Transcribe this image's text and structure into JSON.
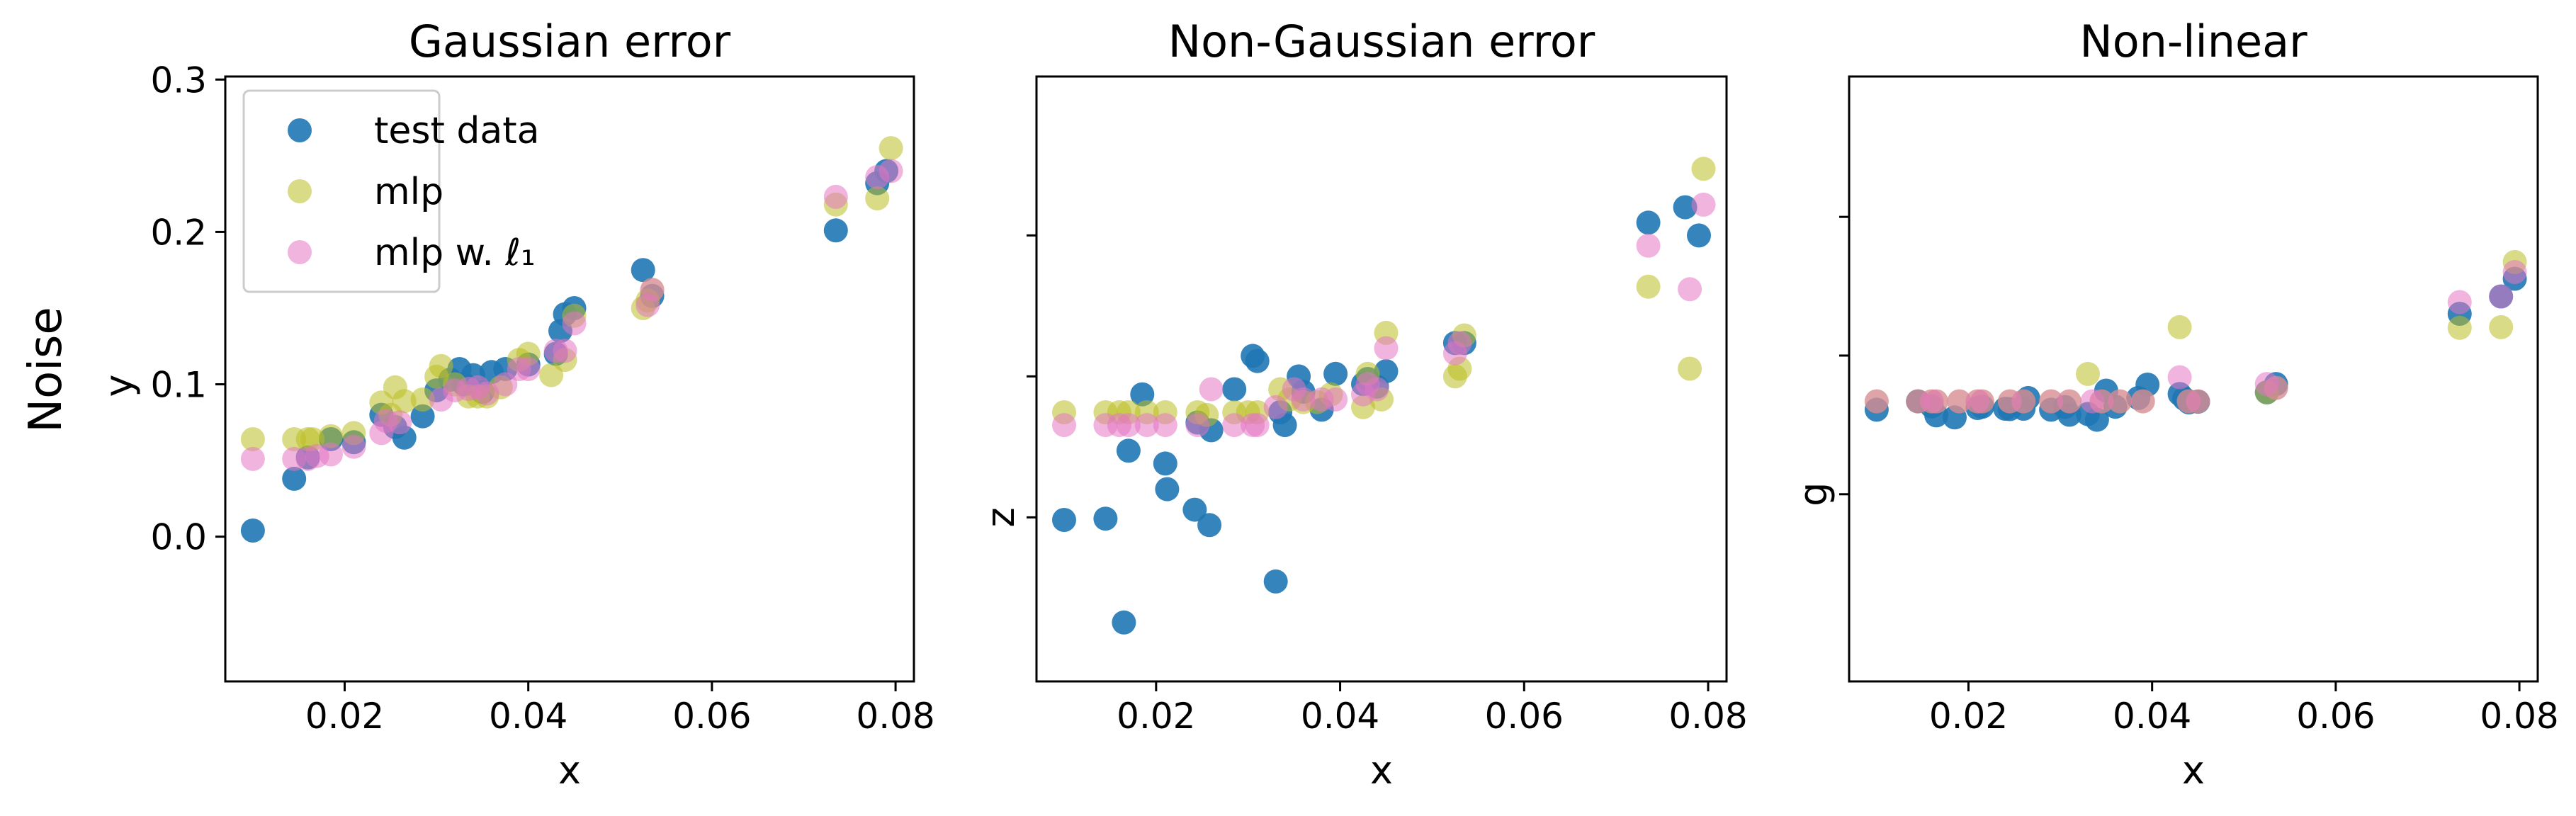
{
  "figure": {
    "ylabel": "Noise"
  },
  "legend": {
    "placement": "upper-left of first panel",
    "items": [
      {
        "label": "test data",
        "color": "#1f77b4"
      },
      {
        "label": "mlp",
        "color": "#bcbd22"
      },
      {
        "label": "mlp w. ℓ₁",
        "color": "#e377c2"
      }
    ]
  },
  "chart_data": [
    {
      "type": "scatter",
      "title": "Gaussian error",
      "xlabel": "x",
      "ylabel": "y",
      "xlim": [
        0.007,
        0.082
      ],
      "ylim": [
        -0.095,
        0.302
      ],
      "xticks": [
        0.02,
        0.04,
        0.06,
        0.08
      ],
      "xtick_labels": [
        "0.02",
        "0.04",
        "0.06",
        "0.08"
      ],
      "yticks": [
        0.0,
        0.1,
        0.2,
        0.3
      ],
      "ytick_labels": [
        "0.0",
        "0.1",
        "0.2",
        "0.3"
      ],
      "series": [
        {
          "name": "test data",
          "color": "#1f77b4",
          "points": [
            [
              0.01,
              0.004
            ],
            [
              0.0145,
              0.038
            ],
            [
              0.016,
              0.052
            ],
            [
              0.0185,
              0.064
            ],
            [
              0.021,
              0.062
            ],
            [
              0.024,
              0.08
            ],
            [
              0.0255,
              0.072
            ],
            [
              0.0265,
              0.065
            ],
            [
              0.0285,
              0.079
            ],
            [
              0.03,
              0.096
            ],
            [
              0.0315,
              0.103
            ],
            [
              0.0325,
              0.11
            ],
            [
              0.033,
              0.1
            ],
            [
              0.034,
              0.106
            ],
            [
              0.035,
              0.095
            ],
            [
              0.036,
              0.108
            ],
            [
              0.0375,
              0.11
            ],
            [
              0.04,
              0.113
            ],
            [
              0.043,
              0.12
            ],
            [
              0.0435,
              0.135
            ],
            [
              0.044,
              0.146
            ],
            [
              0.045,
              0.15
            ],
            [
              0.0525,
              0.175
            ],
            [
              0.0535,
              0.158
            ],
            [
              0.0735,
              0.201
            ],
            [
              0.078,
              0.232
            ],
            [
              0.079,
              0.24
            ]
          ]
        },
        {
          "name": "mlp",
          "color": "#bcbd22",
          "points": [
            [
              0.01,
              0.064
            ],
            [
              0.0145,
              0.064
            ],
            [
              0.016,
              0.064
            ],
            [
              0.0165,
              0.064
            ],
            [
              0.0185,
              0.066
            ],
            [
              0.021,
              0.068
            ],
            [
              0.024,
              0.088
            ],
            [
              0.025,
              0.08
            ],
            [
              0.0255,
              0.098
            ],
            [
              0.0265,
              0.089
            ],
            [
              0.0285,
              0.09
            ],
            [
              0.03,
              0.105
            ],
            [
              0.0305,
              0.112
            ],
            [
              0.032,
              0.1
            ],
            [
              0.0335,
              0.092
            ],
            [
              0.0345,
              0.092
            ],
            [
              0.0355,
              0.092
            ],
            [
              0.037,
              0.098
            ],
            [
              0.039,
              0.116
            ],
            [
              0.04,
              0.12
            ],
            [
              0.0425,
              0.106
            ],
            [
              0.044,
              0.116
            ],
            [
              0.045,
              0.145
            ],
            [
              0.0525,
              0.15
            ],
            [
              0.053,
              0.155
            ],
            [
              0.0535,
              0.162
            ],
            [
              0.0735,
              0.218
            ],
            [
              0.078,
              0.222
            ],
            [
              0.0795,
              0.255
            ]
          ]
        },
        {
          "name": "mlp w. ℓ₁",
          "color": "#e377c2",
          "points": [
            [
              0.01,
              0.051
            ],
            [
              0.0145,
              0.051
            ],
            [
              0.016,
              0.051
            ],
            [
              0.017,
              0.053
            ],
            [
              0.0185,
              0.054
            ],
            [
              0.021,
              0.059
            ],
            [
              0.024,
              0.068
            ],
            [
              0.0245,
              0.076
            ],
            [
              0.026,
              0.075
            ],
            [
              0.0305,
              0.09
            ],
            [
              0.032,
              0.096
            ],
            [
              0.0335,
              0.097
            ],
            [
              0.0345,
              0.098
            ],
            [
              0.0355,
              0.094
            ],
            [
              0.0375,
              0.1
            ],
            [
              0.039,
              0.11
            ],
            [
              0.04,
              0.11
            ],
            [
              0.043,
              0.122
            ],
            [
              0.044,
              0.122
            ],
            [
              0.045,
              0.14
            ],
            [
              0.053,
              0.152
            ],
            [
              0.0535,
              0.162
            ],
            [
              0.0735,
              0.223
            ],
            [
              0.078,
              0.236
            ],
            [
              0.0795,
              0.24
            ]
          ]
        }
      ]
    },
    {
      "type": "scatter",
      "title": "Non-Gaussian error",
      "xlabel": "x",
      "ylabel": "z",
      "xlim": [
        0.007,
        0.082
      ],
      "ylim": [
        -0.64,
        1.72
      ],
      "xticks": [
        0.02,
        0.04,
        0.06,
        0.08
      ],
      "xtick_labels": [
        "0.02",
        "0.04",
        "0.06",
        "0.08"
      ],
      "yticks": [
        0.0
      ],
      "ytick_labels": [],
      "yticks_unlabeled": [
        0.0,
        0.55,
        1.1
      ],
      "series": [
        {
          "name": "test data",
          "color": "#1f77b4",
          "points": [
            [
              0.01,
              -0.01
            ],
            [
              0.0145,
              -0.005
            ],
            [
              0.0165,
              -0.41
            ],
            [
              0.017,
              0.26
            ],
            [
              0.0185,
              0.48
            ],
            [
              0.021,
              0.21
            ],
            [
              0.0212,
              0.11
            ],
            [
              0.0242,
              0.03
            ],
            [
              0.0245,
              0.37
            ],
            [
              0.0258,
              -0.03
            ],
            [
              0.026,
              0.34
            ],
            [
              0.0285,
              0.5
            ],
            [
              0.0305,
              0.63
            ],
            [
              0.031,
              0.61
            ],
            [
              0.033,
              -0.25
            ],
            [
              0.0335,
              0.41
            ],
            [
              0.034,
              0.36
            ],
            [
              0.0355,
              0.55
            ],
            [
              0.036,
              0.49
            ],
            [
              0.038,
              0.42
            ],
            [
              0.0395,
              0.56
            ],
            [
              0.0425,
              0.52
            ],
            [
              0.043,
              0.54
            ],
            [
              0.044,
              0.51
            ],
            [
              0.045,
              0.57
            ],
            [
              0.0525,
              0.68
            ],
            [
              0.0535,
              0.68
            ],
            [
              0.0735,
              1.15
            ],
            [
              0.0775,
              1.21
            ],
            [
              0.079,
              1.1
            ]
          ]
        },
        {
          "name": "mlp",
          "color": "#bcbd22",
          "points": [
            [
              0.01,
              0.41
            ],
            [
              0.0145,
              0.41
            ],
            [
              0.016,
              0.41
            ],
            [
              0.017,
              0.41
            ],
            [
              0.019,
              0.41
            ],
            [
              0.021,
              0.41
            ],
            [
              0.0245,
              0.41
            ],
            [
              0.0255,
              0.4
            ],
            [
              0.0285,
              0.41
            ],
            [
              0.03,
              0.41
            ],
            [
              0.031,
              0.41
            ],
            [
              0.0335,
              0.5
            ],
            [
              0.0345,
              0.46
            ],
            [
              0.036,
              0.45
            ],
            [
              0.0375,
              0.45
            ],
            [
              0.039,
              0.48
            ],
            [
              0.0425,
              0.43
            ],
            [
              0.043,
              0.56
            ],
            [
              0.0445,
              0.46
            ],
            [
              0.045,
              0.72
            ],
            [
              0.0525,
              0.55
            ],
            [
              0.053,
              0.58
            ],
            [
              0.0535,
              0.71
            ],
            [
              0.0735,
              0.9
            ],
            [
              0.078,
              0.58
            ],
            [
              0.0795,
              1.36
            ]
          ]
        },
        {
          "name": "mlp w. ℓ₁",
          "color": "#e377c2",
          "points": [
            [
              0.01,
              0.36
            ],
            [
              0.0145,
              0.36
            ],
            [
              0.016,
              0.36
            ],
            [
              0.017,
              0.36
            ],
            [
              0.019,
              0.36
            ],
            [
              0.021,
              0.36
            ],
            [
              0.0245,
              0.36
            ],
            [
              0.026,
              0.5
            ],
            [
              0.0285,
              0.36
            ],
            [
              0.0305,
              0.36
            ],
            [
              0.031,
              0.36
            ],
            [
              0.033,
              0.43
            ],
            [
              0.035,
              0.5
            ],
            [
              0.036,
              0.46
            ],
            [
              0.038,
              0.46
            ],
            [
              0.0395,
              0.46
            ],
            [
              0.0425,
              0.48
            ],
            [
              0.043,
              0.52
            ],
            [
              0.044,
              0.5
            ],
            [
              0.045,
              0.66
            ],
            [
              0.0525,
              0.64
            ],
            [
              0.053,
              0.68
            ],
            [
              0.0735,
              1.06
            ],
            [
              0.078,
              0.89
            ],
            [
              0.0795,
              1.22
            ]
          ]
        }
      ]
    },
    {
      "type": "scatter",
      "title": "Non-linear",
      "xlabel": "x",
      "ylabel": "g",
      "xlim": [
        0.007,
        0.082
      ],
      "ylim": [
        -0.56,
        1.25
      ],
      "xticks": [
        0.02,
        0.04,
        0.06,
        0.08
      ],
      "xtick_labels": [
        "0.02",
        "0.04",
        "0.06",
        "0.08"
      ],
      "yticks": [
        0.0
      ],
      "ytick_labels": [],
      "yticks_unlabeled": [
        0.0,
        0.415,
        0.83
      ],
      "series": [
        {
          "name": "test data",
          "color": "#1f77b4",
          "points": [
            [
              0.01,
              0.253
            ],
            [
              0.0145,
              0.278
            ],
            [
              0.016,
              0.263
            ],
            [
              0.0165,
              0.236
            ],
            [
              0.0185,
              0.23
            ],
            [
              0.021,
              0.258
            ],
            [
              0.0215,
              0.262
            ],
            [
              0.024,
              0.256
            ],
            [
              0.0245,
              0.255
            ],
            [
              0.026,
              0.256
            ],
            [
              0.0265,
              0.288
            ],
            [
              0.029,
              0.253
            ],
            [
              0.0305,
              0.261
            ],
            [
              0.031,
              0.238
            ],
            [
              0.033,
              0.24
            ],
            [
              0.034,
              0.223
            ],
            [
              0.035,
              0.31
            ],
            [
              0.036,
              0.262
            ],
            [
              0.0385,
              0.288
            ],
            [
              0.0395,
              0.328
            ],
            [
              0.043,
              0.3
            ],
            [
              0.0435,
              0.286
            ],
            [
              0.044,
              0.275
            ],
            [
              0.045,
              0.277
            ],
            [
              0.0525,
              0.305
            ],
            [
              0.0535,
              0.33
            ],
            [
              0.0735,
              0.54
            ],
            [
              0.078,
              0.592
            ],
            [
              0.0795,
              0.645
            ]
          ]
        },
        {
          "name": "mlp",
          "color": "#bcbd22",
          "points": [
            [
              0.01,
              0.278
            ],
            [
              0.0145,
              0.278
            ],
            [
              0.016,
              0.278
            ],
            [
              0.0165,
              0.278
            ],
            [
              0.019,
              0.278
            ],
            [
              0.021,
              0.278
            ],
            [
              0.0215,
              0.278
            ],
            [
              0.0245,
              0.278
            ],
            [
              0.026,
              0.278
            ],
            [
              0.029,
              0.278
            ],
            [
              0.031,
              0.278
            ],
            [
              0.033,
              0.36
            ],
            [
              0.0345,
              0.278
            ],
            [
              0.0365,
              0.278
            ],
            [
              0.039,
              0.278
            ],
            [
              0.043,
              0.5
            ],
            [
              0.044,
              0.278
            ],
            [
              0.045,
              0.278
            ],
            [
              0.0525,
              0.305
            ],
            [
              0.0535,
              0.318
            ],
            [
              0.0735,
              0.498
            ],
            [
              0.078,
              0.5
            ],
            [
              0.0795,
              0.695
            ]
          ]
        },
        {
          "name": "mlp w. ℓ₁",
          "color": "#e377c2",
          "points": [
            [
              0.01,
              0.278
            ],
            [
              0.0145,
              0.278
            ],
            [
              0.016,
              0.278
            ],
            [
              0.0165,
              0.278
            ],
            [
              0.019,
              0.278
            ],
            [
              0.021,
              0.278
            ],
            [
              0.0215,
              0.278
            ],
            [
              0.0245,
              0.278
            ],
            [
              0.026,
              0.278
            ],
            [
              0.029,
              0.278
            ],
            [
              0.031,
              0.278
            ],
            [
              0.0335,
              0.278
            ],
            [
              0.0345,
              0.278
            ],
            [
              0.0365,
              0.278
            ],
            [
              0.039,
              0.278
            ],
            [
              0.043,
              0.35
            ],
            [
              0.044,
              0.278
            ],
            [
              0.045,
              0.278
            ],
            [
              0.0525,
              0.33
            ],
            [
              0.0535,
              0.318
            ],
            [
              0.0735,
              0.575
            ],
            [
              0.078,
              0.592
            ],
            [
              0.0795,
              0.665
            ]
          ]
        }
      ]
    }
  ]
}
